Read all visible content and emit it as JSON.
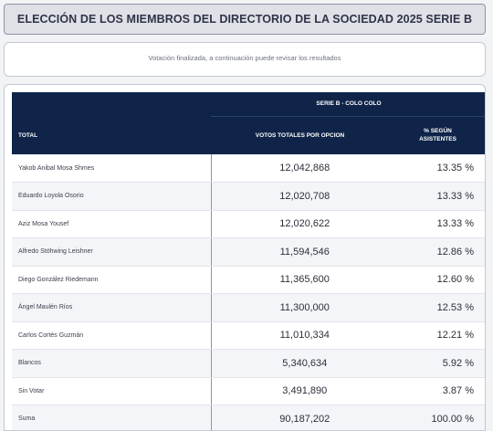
{
  "header": {
    "title": "ELECCIÓN DE LOS MIEMBROS DEL DIRECTORIO DE LA SOCIEDAD 2025 SERIE B"
  },
  "notice": {
    "text": "Votación finalizada, a continuación puede revisar los resultados"
  },
  "table": {
    "series_label": "SERIE B - COLO COLO",
    "col_total": "TOTAL",
    "col_votes": "VOTOS TOTALES POR OPCION",
    "col_pct_line1": "% SEGÚN",
    "col_pct_line2": "ASISTENTES",
    "rows": [
      {
        "name": "Yakob Anibal Mosa Shmes",
        "votes": "12,042,868",
        "pct": "13.35 %"
      },
      {
        "name": "Eduardo Loyola Osorio",
        "votes": "12,020,708",
        "pct": "13.33 %"
      },
      {
        "name": "Aziz Mosa Yousef",
        "votes": "12,020,622",
        "pct": "13.33 %"
      },
      {
        "name": "Alfredo Stöhwing Leishner",
        "votes": "11,594,546",
        "pct": "12.86 %"
      },
      {
        "name": "Diego González Riedemann",
        "votes": "11,365,600",
        "pct": "12.60 %"
      },
      {
        "name": "Ángel Maulén Ríos",
        "votes": "11,300,000",
        "pct": "12.53 %"
      },
      {
        "name": "Carlos Cortés Guzmán",
        "votes": "11,010,334",
        "pct": "12.21 %"
      },
      {
        "name": "Blancos",
        "votes": "5,340,634",
        "pct": "5.92 %"
      },
      {
        "name": "Sin Votar",
        "votes": "3,491,890",
        "pct": "3.87 %"
      },
      {
        "name": "Suma",
        "votes": "90,187,202",
        "pct": "100.00 %"
      }
    ]
  }
}
